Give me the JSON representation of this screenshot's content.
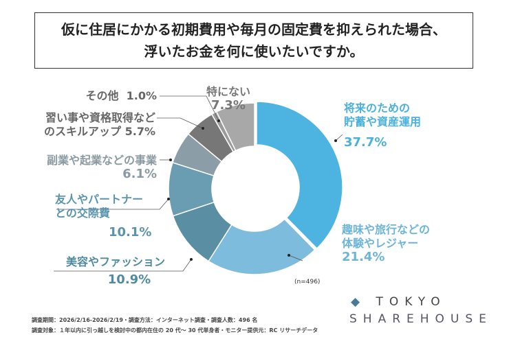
{
  "title": {
    "line1": "仮に住居にかかる初期費用や毎月の固定費を抑えられた場合、",
    "line2": "浮いたお金を何に使いたいですか。"
  },
  "chart_data": {
    "type": "pie",
    "donut": true,
    "start": "12 o'clock, clockwise",
    "categories": [
      "将来のための貯蓄や資産運用",
      "趣味や旅行などの体験やレジャー",
      "美容やファッション",
      "友人やパートナーとの交際費",
      "副業や起業などの事業",
      "習い事や資格取得などのスキルアップ",
      "その他",
      "特にない"
    ],
    "values": [
      37.7,
      21.4,
      10.9,
      10.1,
      6.1,
      5.7,
      1.0,
      7.3
    ],
    "colors": [
      "#4db3e0",
      "#7dbcdc",
      "#5a8ea2",
      "#6b9db2",
      "#8b9ea8",
      "#777777",
      "#9a9a9a",
      "#a8a8a8"
    ],
    "labels": [
      {
        "l1": "将来のための",
        "l2": "貯蓄や資産運用",
        "pct": "37.7%",
        "color": "#4ab0de"
      },
      {
        "l1": "趣味や旅行などの",
        "l2": "体験やレジャー",
        "pct": "21.4%",
        "color": "#6db5d8"
      },
      {
        "l1": "美容やファッション",
        "l2": "",
        "pct": "10.9%",
        "color": "#4f8aa0"
      },
      {
        "l1": "友人やパートナー",
        "l2": "との交際費",
        "pct": "10.1%",
        "color": "#5a94ac"
      },
      {
        "l1": "副業や起業などの事業",
        "l2": "",
        "pct": "6.1%",
        "color": "#8a9aa2"
      },
      {
        "l1": "習い事や資格取得など",
        "l2": "のスキルアップ",
        "pct": "5.7%",
        "color": "#666666"
      },
      {
        "l1": "その他",
        "l2": "",
        "pct": "1.0%",
        "color": "#666666"
      },
      {
        "l1": "特にない",
        "l2": "",
        "pct": "7.3%",
        "color": "#777777"
      }
    ],
    "n": "(n=496)"
  },
  "footer": {
    "line1": "調査期間：2026/2/16-2026/2/19・調査方法：インターネット調査・調査人数：496 名",
    "line2": "調査対象：１年以内に引っ越しを検討中の都内在住の 20 代～ 30 代単身者・モニター提供元：RC リサーチデータ"
  },
  "logo": {
    "line1": "TOKYO",
    "line2": "SHAREHOUSE"
  }
}
